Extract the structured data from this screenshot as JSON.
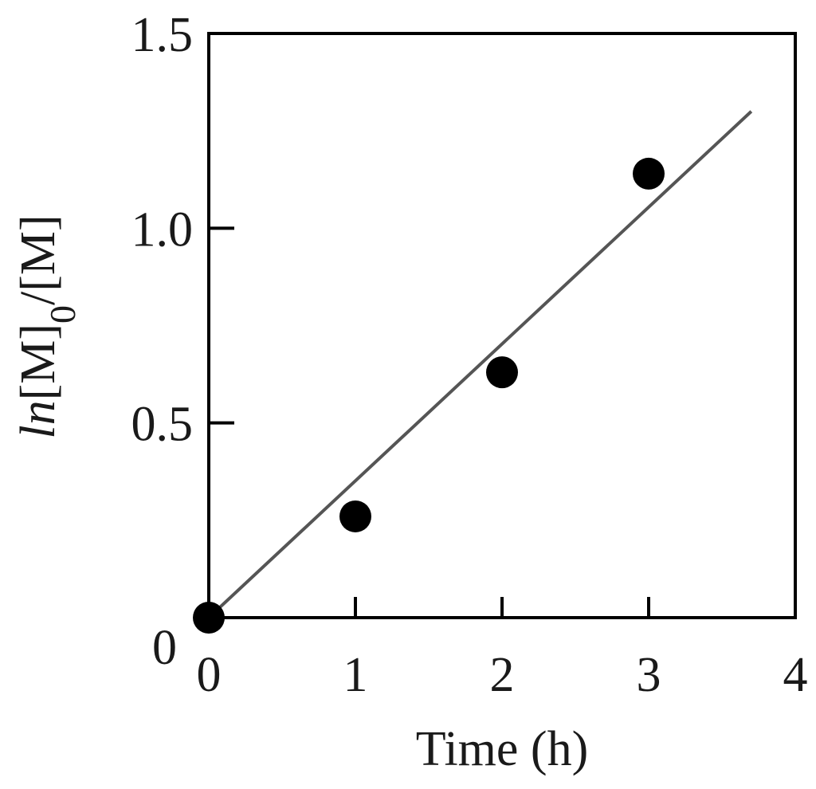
{
  "chart_data": {
    "type": "scatter",
    "title": "",
    "xlabel": "Time (h)",
    "ylabel": {
      "prefix": "ln",
      "bracket_open": "[M]",
      "subscript": "0",
      "rest": "/[M]"
    },
    "xlim": [
      0,
      4
    ],
    "ylim": [
      0,
      1.5
    ],
    "x_ticks": [
      0,
      1,
      2,
      3,
      4
    ],
    "x_tick_labels": [
      "0",
      "1",
      "2",
      "3",
      "4"
    ],
    "y_ticks": [
      0,
      0.5,
      1.0,
      1.5
    ],
    "y_tick_labels": [
      "0",
      "0.5",
      "1.0",
      "1.5"
    ],
    "grid": false,
    "colors": {
      "points": "#000000",
      "fit_line": "#555555",
      "frame": "#000000"
    },
    "series": [
      {
        "kind": "points",
        "x": [
          0,
          1,
          2,
          3
        ],
        "y": [
          0.0,
          0.26,
          0.63,
          1.14
        ]
      },
      {
        "kind": "fit-line",
        "x": [
          0,
          3.7
        ],
        "y": [
          0.0,
          1.3
        ]
      }
    ]
  }
}
